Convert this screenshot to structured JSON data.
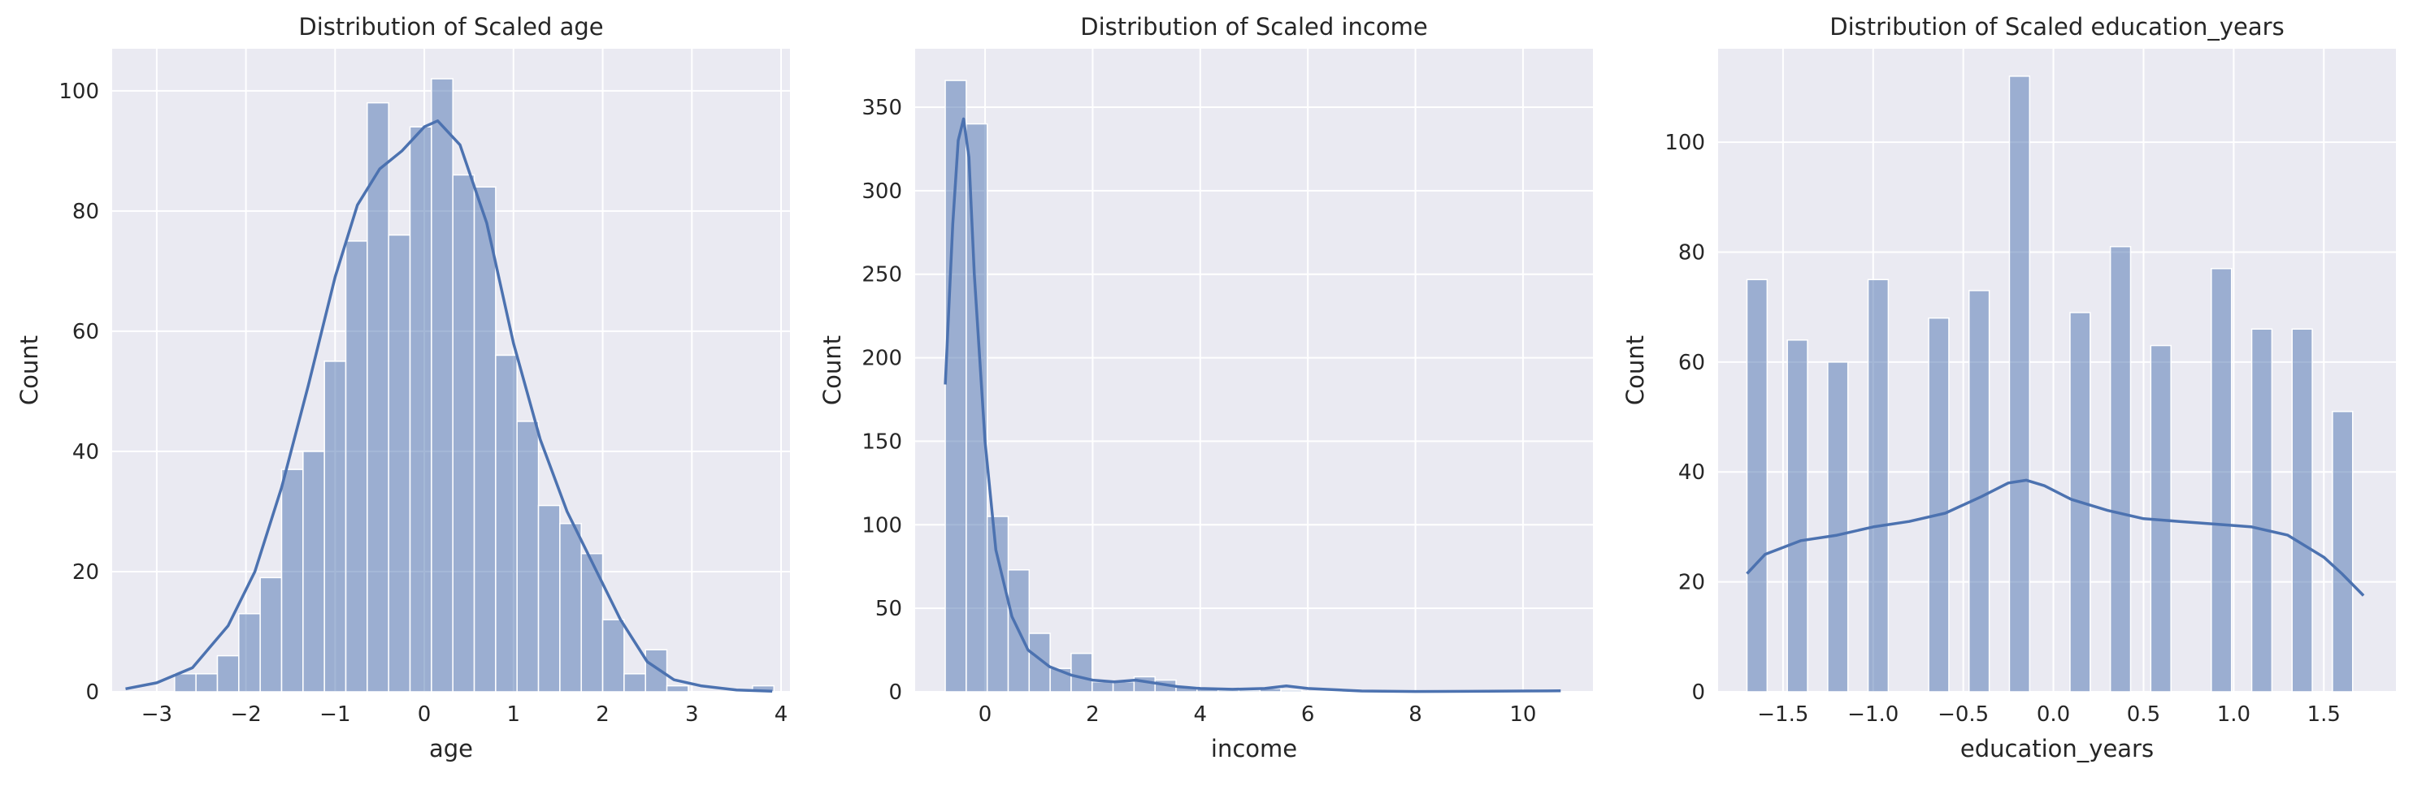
{
  "style": {
    "panel_bg": "#eaeaf2",
    "grid": "#ffffff",
    "bar_fill": "#4c72b0",
    "bar_opacity": 0.5,
    "kde_line": "#4c72b0"
  },
  "chart_data": [
    {
      "type": "histogram",
      "title": "Distribution of Scaled age",
      "xlabel": "age",
      "ylabel": "Count",
      "xlim": [
        -3.5,
        4.1
      ],
      "ylim": [
        0,
        107
      ],
      "xticks": [
        -3,
        -2,
        -1,
        0,
        1,
        2,
        3,
        4
      ],
      "yticks": [
        0,
        20,
        40,
        60,
        80,
        100
      ],
      "grid": true,
      "bins": {
        "edges": [
          -2.8,
          -2.56,
          -2.32,
          -2.08,
          -1.84,
          -1.6,
          -1.36,
          -1.12,
          -0.88,
          -0.64,
          -0.4,
          -0.16,
          0.08,
          0.32,
          0.56,
          0.8,
          1.04,
          1.28,
          1.52,
          1.76,
          2.0,
          2.24,
          2.48,
          2.72,
          2.96,
          3.2,
          3.44,
          3.68,
          3.92
        ],
        "counts": [
          3,
          3,
          6,
          13,
          19,
          37,
          40,
          55,
          75,
          98,
          76,
          94,
          102,
          86,
          84,
          56,
          45,
          31,
          28,
          23,
          12,
          3,
          7,
          1,
          0,
          0,
          0,
          1
        ]
      },
      "kde": {
        "x": [
          -3.35,
          -3.0,
          -2.6,
          -2.2,
          -1.9,
          -1.6,
          -1.3,
          -1.0,
          -0.75,
          -0.5,
          -0.25,
          0.0,
          0.15,
          0.4,
          0.7,
          1.0,
          1.3,
          1.6,
          1.9,
          2.2,
          2.5,
          2.8,
          3.1,
          3.5,
          3.9
        ],
        "y": [
          0.5,
          1.5,
          4,
          11,
          20,
          34,
          51,
          69,
          81,
          87,
          90,
          94,
          95,
          91,
          78,
          58,
          42,
          30,
          21,
          12,
          5,
          2,
          1,
          0.3,
          0.1
        ]
      }
    },
    {
      "type": "histogram",
      "title": "Distribution of Scaled income",
      "xlabel": "income",
      "ylabel": "Count",
      "xlim": [
        -1.3,
        11.3
      ],
      "ylim": [
        0,
        385
      ],
      "xticks": [
        0,
        2,
        4,
        6,
        8,
        10
      ],
      "yticks": [
        0,
        50,
        100,
        150,
        200,
        250,
        300,
        350
      ],
      "grid": true,
      "bins": {
        "edges": [
          -0.74,
          -0.35,
          0.04,
          0.43,
          0.82,
          1.21,
          1.6,
          1.99,
          2.38,
          2.77,
          3.16,
          3.55,
          3.94,
          4.33,
          4.72,
          5.11,
          5.5,
          5.89,
          6.28,
          6.67,
          7.06,
          7.45,
          7.84,
          8.23,
          8.62,
          9.01,
          9.4,
          9.79,
          10.18,
          10.57
        ],
        "counts": [
          366,
          340,
          105,
          73,
          35,
          14,
          23,
          6,
          6,
          9,
          7,
          3,
          2,
          1,
          1,
          2,
          1,
          0,
          0,
          0,
          0,
          0,
          0,
          0,
          0,
          0,
          0,
          0,
          1
        ]
      },
      "kde": {
        "x": [
          -0.74,
          -0.6,
          -0.5,
          -0.4,
          -0.3,
          -0.2,
          0.0,
          0.2,
          0.5,
          0.8,
          1.2,
          1.6,
          2.0,
          2.4,
          2.8,
          3.2,
          3.6,
          4.0,
          4.6,
          5.2,
          5.6,
          6.0,
          7.0,
          8.0,
          9.0,
          10.0,
          10.7
        ],
        "y": [
          184,
          280,
          330,
          343,
          320,
          250,
          150,
          85,
          45,
          25,
          15,
          10,
          7,
          6,
          7,
          5,
          3,
          2,
          1.5,
          2,
          3.5,
          2,
          0.5,
          0.2,
          0.3,
          0.5,
          0.6
        ]
      }
    },
    {
      "type": "histogram",
      "title": "Distribution of Scaled education_years",
      "xlabel": "education_years",
      "ylabel": "Count",
      "xlim": [
        -1.86,
        1.9
      ],
      "ylim": [
        0,
        117
      ],
      "xticks": [
        -1.5,
        -1.0,
        -0.5,
        0.0,
        0.5,
        1.0,
        1.5
      ],
      "yticks": [
        0,
        20,
        40,
        60,
        80,
        100
      ],
      "grid": true,
      "bins": {
        "edges": [
          -1.7,
          -1.588,
          -1.476,
          -1.364,
          -1.252,
          -1.14,
          -1.028,
          -0.916,
          -0.804,
          -0.692,
          -0.58,
          -0.468,
          -0.356,
          -0.244,
          -0.132,
          -0.02,
          0.092,
          0.204,
          0.316,
          0.428,
          0.54,
          0.652,
          0.764,
          0.876,
          0.988,
          1.1,
          1.212,
          1.324,
          1.436,
          1.548,
          1.66,
          1.772
        ],
        "counts": [
          75,
          0,
          64,
          0,
          60,
          0,
          75,
          0,
          0,
          68,
          0,
          73,
          0,
          112,
          0,
          0,
          69,
          0,
          81,
          0,
          63,
          0,
          0,
          77,
          0,
          66,
          0,
          66,
          0,
          51,
          0
        ]
      },
      "kde": {
        "x": [
          -1.7,
          -1.6,
          -1.4,
          -1.2,
          -1.0,
          -0.8,
          -0.6,
          -0.4,
          -0.25,
          -0.15,
          -0.05,
          0.1,
          0.3,
          0.5,
          0.7,
          0.9,
          1.1,
          1.3,
          1.5,
          1.6,
          1.72
        ],
        "y": [
          21.5,
          25,
          27.5,
          28.5,
          30,
          31,
          32.5,
          35.5,
          38,
          38.5,
          37.5,
          35,
          33,
          31.5,
          31,
          30.5,
          30,
          28.5,
          24.5,
          21.5,
          17.5
        ]
      }
    }
  ]
}
